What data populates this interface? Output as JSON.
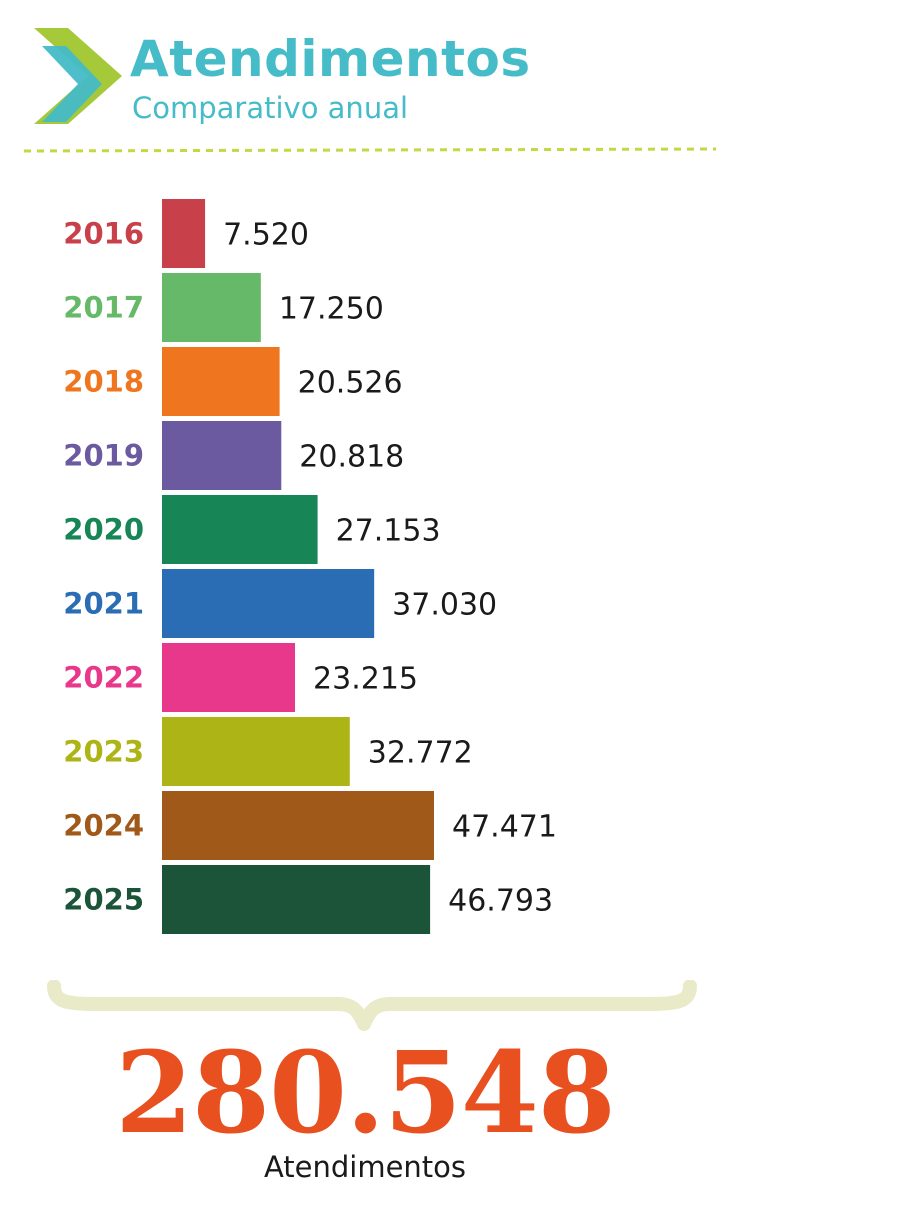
{
  "header": {
    "title": "Atendimentos",
    "subtitle": "Comparativo anual"
  },
  "chart_data": {
    "type": "bar",
    "orientation": "horizontal",
    "categories": [
      "2016",
      "2017",
      "2018",
      "2019",
      "2020",
      "2021",
      "2022",
      "2023",
      "2024",
      "2025"
    ],
    "values": [
      7520,
      17250,
      20526,
      20818,
      27153,
      37030,
      23215,
      32772,
      47471,
      46793
    ],
    "value_labels": [
      "7.520",
      "17.250",
      "20.526",
      "20.818",
      "27.153",
      "37.030",
      "23.215",
      "32.772",
      "47.471",
      "46.793"
    ],
    "colors": [
      "#c8404a",
      "#67b96a",
      "#ef761f",
      "#6c5aa1",
      "#178556",
      "#2a6db4",
      "#e8388c",
      "#adb416",
      "#a05918",
      "#1b5438"
    ],
    "xlim": [
      0,
      47471
    ],
    "grid": false,
    "legend": "none"
  },
  "total": {
    "value": "280.548",
    "label": "Atendimentos"
  },
  "colors": {
    "title": "#45bcc7",
    "accent_green": "#a6c93a",
    "total": "#e8501f",
    "brace": "#e9ebc8"
  },
  "icons": {
    "logo": "chevron-arrow-icon"
  }
}
